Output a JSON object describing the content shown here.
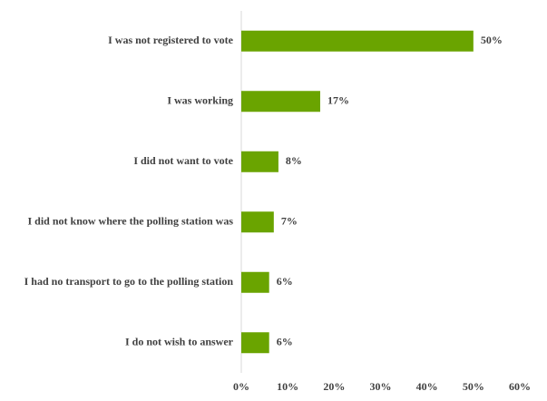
{
  "chart_data": {
    "type": "hbar",
    "categories": [
      "I was not registered to vote",
      "I was working",
      "I did not want to vote",
      "I did not know where the polling station was",
      "I had no transport to go to the polling station",
      "I do not wish to answer"
    ],
    "values": [
      50,
      17,
      8,
      7,
      6,
      6
    ],
    "value_labels": [
      "50%",
      "17%",
      "8%",
      "7%",
      "6%",
      "6%"
    ],
    "color": "#6aa400",
    "xlim": [
      0,
      60
    ],
    "xticks": [
      {
        "value": 0,
        "label": "0%"
      },
      {
        "value": 10,
        "label": "10%"
      },
      {
        "value": 20,
        "label": "20%"
      },
      {
        "value": 30,
        "label": "30%"
      },
      {
        "value": 40,
        "label": "40%"
      },
      {
        "value": 50,
        "label": "50%"
      },
      {
        "value": 60,
        "label": "60%"
      }
    ]
  }
}
